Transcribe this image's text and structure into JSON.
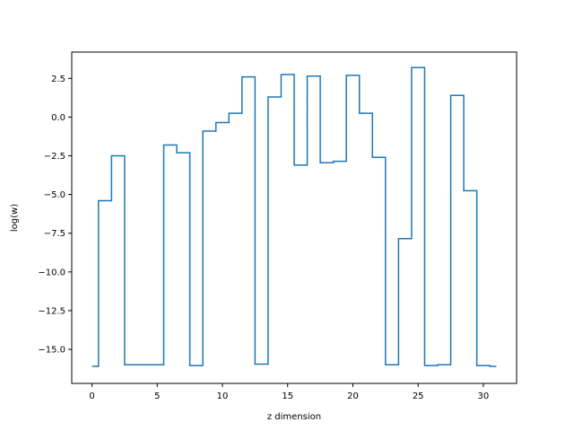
{
  "chart_data": {
    "type": "line",
    "drawstyle": "steps-mid",
    "title": "",
    "xlabel": "z dimension",
    "ylabel": "log(w)",
    "xlim": [
      -1.55,
      32.55
    ],
    "ylim": [
      -17.2,
      4.2
    ],
    "xticks": [
      0,
      5,
      10,
      15,
      20,
      25,
      30
    ],
    "yticks": [
      2.5,
      0.0,
      -2.5,
      -5.0,
      -7.5,
      -10.0,
      -12.5,
      -15.0
    ],
    "xtick_labels": [
      "0",
      "5",
      "10",
      "15",
      "20",
      "25",
      "30"
    ],
    "ytick_labels": [
      "2.5",
      "0.0",
      "−2.5",
      "−5.0",
      "−7.5",
      "−10.0",
      "−12.5",
      "−15.0"
    ],
    "grid": false,
    "line_color": "#1f77b4",
    "x": [
      0,
      1,
      2,
      3,
      4,
      5,
      6,
      7,
      8,
      9,
      10,
      11,
      12,
      13,
      14,
      15,
      16,
      17,
      18,
      19,
      20,
      21,
      22,
      23,
      24,
      25,
      26,
      27,
      28,
      29,
      30,
      31
    ],
    "y": [
      -16.1,
      -5.4,
      -2.5,
      -16.0,
      -16.0,
      -16.0,
      -1.8,
      -2.3,
      -16.05,
      -0.9,
      -0.35,
      0.25,
      2.6,
      -15.95,
      1.3,
      2.75,
      -3.1,
      2.65,
      -2.95,
      -2.85,
      2.7,
      0.25,
      -2.6,
      -16.0,
      -7.85,
      3.2,
      -16.05,
      -16.0,
      1.4,
      -4.75,
      -16.05,
      -16.1
    ]
  }
}
